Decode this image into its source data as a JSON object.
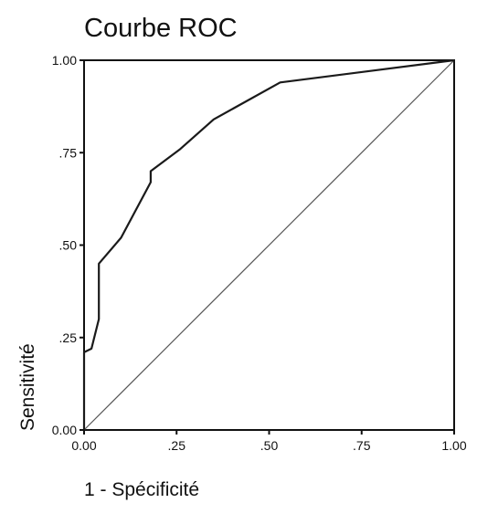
{
  "chart_data": {
    "type": "line",
    "title": "Courbe ROC",
    "xlabel": "1 - Spécificité",
    "ylabel": "Sensitivité",
    "xlim": [
      0,
      1
    ],
    "ylim": [
      0,
      1
    ],
    "x_ticks": [
      "0.00",
      ".25",
      ".50",
      ".75",
      "1.00"
    ],
    "y_ticks": [
      "0.00",
      ".25",
      ".50",
      ".75",
      "1.00"
    ],
    "grid": false,
    "legend": "none",
    "colors": {
      "curve": "#1a1a1a",
      "reference": "#555555",
      "frame": "#111111"
    },
    "series": [
      {
        "x": [
          0.0,
          0.0,
          0.02,
          0.04,
          0.04,
          0.04,
          0.1,
          0.18,
          0.18,
          0.26,
          0.35,
          0.53,
          1.0
        ],
        "y": [
          0.0,
          0.21,
          0.22,
          0.3,
          0.45,
          0.45,
          0.52,
          0.67,
          0.7,
          0.76,
          0.84,
          0.94,
          1.0
        ]
      },
      {
        "x": [
          0.0,
          1.0
        ],
        "y": [
          0.0,
          1.0
        ]
      }
    ]
  }
}
